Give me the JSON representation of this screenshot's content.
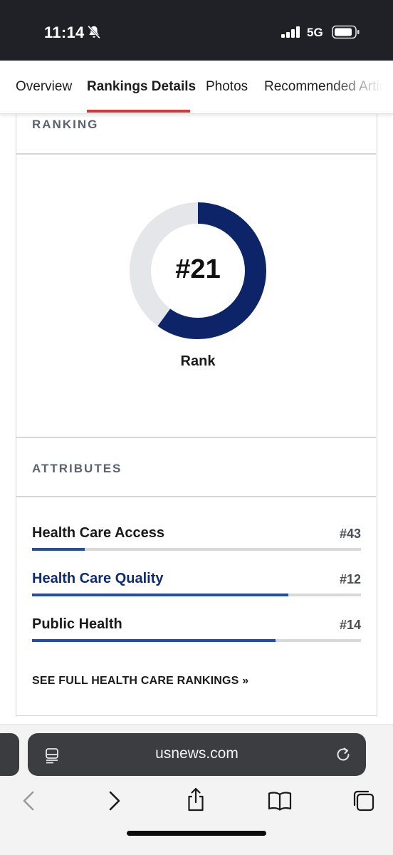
{
  "status_bar": {
    "time": "11:14",
    "network": "5G",
    "icons": [
      "bell-slash-icon",
      "signal-icon",
      "battery-icon"
    ]
  },
  "tabs": [
    {
      "label": "Overview",
      "active": false
    },
    {
      "label": "Rankings Details",
      "active": true
    },
    {
      "label": "Photos",
      "active": false
    },
    {
      "label": "Recommended Articles",
      "active": false
    }
  ],
  "ranking": {
    "section_title": "RANKING",
    "rank": "#21",
    "rank_label": "Rank",
    "donut_fill_fraction": 0.6,
    "colors": {
      "fill": "#0e2468",
      "track": "#e5e6e9"
    }
  },
  "attributes": {
    "section_title": "ATTRIBUTES",
    "items": [
      {
        "name": "Health Care Access",
        "rank": "#43",
        "fill_fraction": 0.16,
        "linked": false
      },
      {
        "name": "Health Care Quality",
        "rank": "#12",
        "fill_fraction": 0.78,
        "linked": true
      },
      {
        "name": "Public Health",
        "rank": "#14",
        "fill_fraction": 0.74,
        "linked": false
      }
    ],
    "bar_color": "#1f4db1",
    "full_rankings_link": "SEE FULL HEALTH CARE RANKINGS »"
  },
  "browser": {
    "url": "usnews.com",
    "icons": [
      "reader-icon",
      "reload-icon",
      "back-icon",
      "forward-icon",
      "share-icon",
      "bookmarks-icon",
      "tabs-icon"
    ]
  }
}
